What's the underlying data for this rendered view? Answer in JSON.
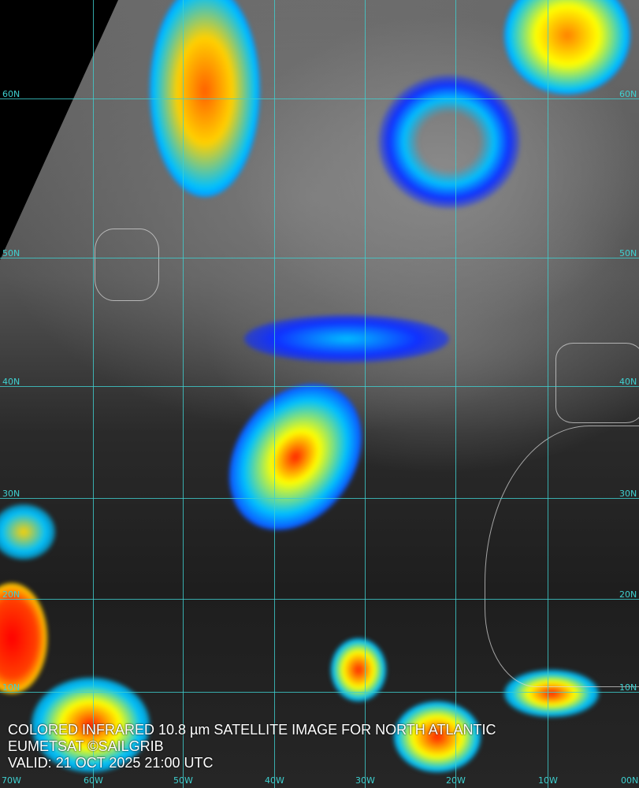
{
  "caption": {
    "line1": "COLORED INFRARED 10.8 µm SATELLITE IMAGE FOR NORTH ATLANTIC",
    "line2": "EUMETSAT ©SAILGRIB",
    "line3": "VALID:  21 OCT 2025 21:00 UTC"
  },
  "grid": {
    "latitudes": [
      "60N",
      "50N",
      "40N",
      "30N",
      "20N",
      "10N"
    ],
    "longitudes": [
      "70W",
      "60W",
      "50W",
      "40W",
      "30W",
      "20W",
      "10W",
      "00N"
    ]
  },
  "colors": {
    "grid": "#3fd0d0",
    "limb": "#8b0000",
    "cold_cloud": "#ff2000",
    "mid_cloud": "#ffff00",
    "cool_cloud": "#00c0ff",
    "edge_cloud": "#1030ff"
  }
}
